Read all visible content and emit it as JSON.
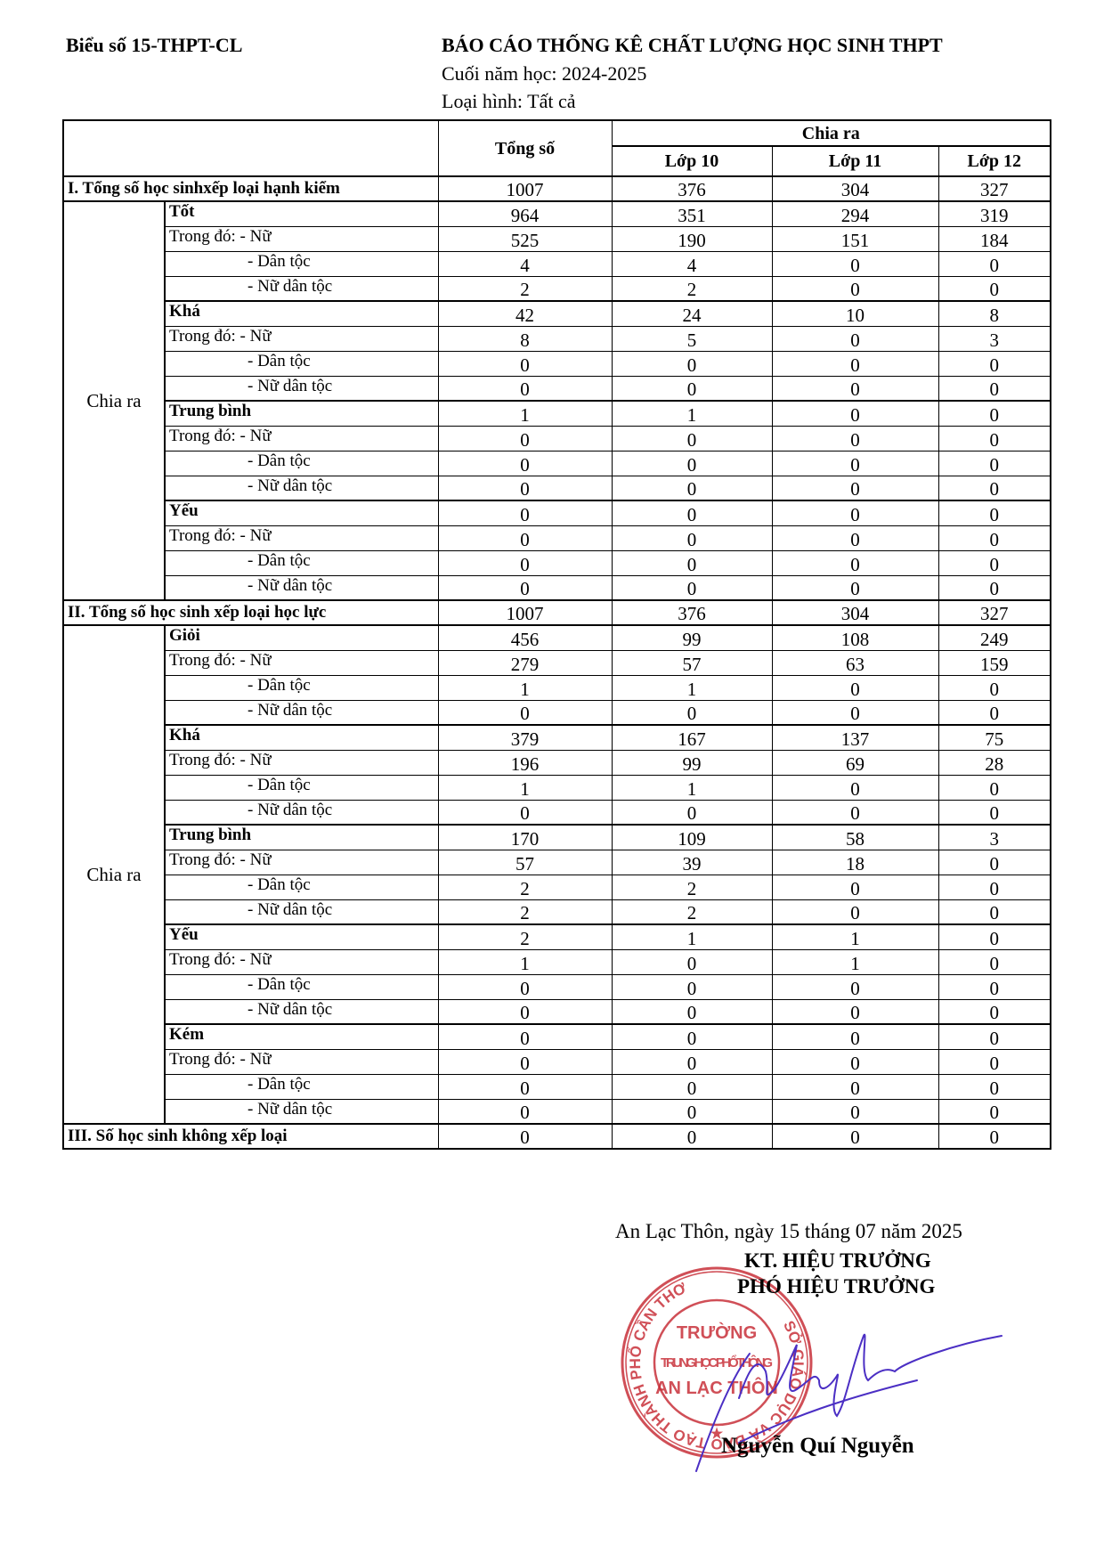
{
  "header": {
    "form_code": "Biểu số 15-THPT-CL",
    "title": "BÁO CÁO THỐNG KÊ CHẤT LƯỢNG HỌC SINH THPT",
    "school_year": "Cuối năm học: 2024-2025",
    "type": "Loại hình: Tất cả"
  },
  "table": {
    "col_total": "Tổng số",
    "col_split": "Chia ra",
    "grades": [
      "Lớp 10",
      "Lớp 11",
      "Lớp 12"
    ],
    "split_label": "Chia ra",
    "sub_labels": [
      "Trong đó: - Nữ",
      "- Dân tộc",
      "- Nữ dân tộc"
    ],
    "sections": [
      {
        "title": "I. Tổng số học sinhxếp loại hạnh kiểm",
        "values": [
          1007,
          376,
          304,
          327
        ],
        "groups": [
          {
            "label": "Tốt",
            "values": [
              964,
              351,
              294,
              319
            ],
            "subs": [
              [
                525,
                190,
                151,
                184
              ],
              [
                4,
                4,
                0,
                0
              ],
              [
                2,
                2,
                0,
                0
              ]
            ]
          },
          {
            "label": "Khá",
            "values": [
              42,
              24,
              10,
              8
            ],
            "subs": [
              [
                8,
                5,
                0,
                3
              ],
              [
                0,
                0,
                0,
                0
              ],
              [
                0,
                0,
                0,
                0
              ]
            ]
          },
          {
            "label": "Trung bình",
            "values": [
              1,
              1,
              0,
              0
            ],
            "subs": [
              [
                0,
                0,
                0,
                0
              ],
              [
                0,
                0,
                0,
                0
              ],
              [
                0,
                0,
                0,
                0
              ]
            ]
          },
          {
            "label": "Yếu",
            "values": [
              0,
              0,
              0,
              0
            ],
            "subs": [
              [
                0,
                0,
                0,
                0
              ],
              [
                0,
                0,
                0,
                0
              ],
              [
                0,
                0,
                0,
                0
              ]
            ]
          }
        ]
      },
      {
        "title": "II. Tổng số học sinh xếp loại học lực",
        "values": [
          1007,
          376,
          304,
          327
        ],
        "groups": [
          {
            "label": "Giỏi",
            "values": [
              456,
              99,
              108,
              249
            ],
            "subs": [
              [
                279,
                57,
                63,
                159
              ],
              [
                1,
                1,
                0,
                0
              ],
              [
                0,
                0,
                0,
                0
              ]
            ]
          },
          {
            "label": "Khá",
            "values": [
              379,
              167,
              137,
              75
            ],
            "subs": [
              [
                196,
                99,
                69,
                28
              ],
              [
                1,
                1,
                0,
                0
              ],
              [
                0,
                0,
                0,
                0
              ]
            ]
          },
          {
            "label": "Trung bình",
            "values": [
              170,
              109,
              58,
              3
            ],
            "subs": [
              [
                57,
                39,
                18,
                0
              ],
              [
                2,
                2,
                0,
                0
              ],
              [
                2,
                2,
                0,
                0
              ]
            ]
          },
          {
            "label": "Yếu",
            "values": [
              2,
              1,
              1,
              0
            ],
            "subs": [
              [
                1,
                0,
                1,
                0
              ],
              [
                0,
                0,
                0,
                0
              ],
              [
                0,
                0,
                0,
                0
              ]
            ]
          },
          {
            "label": "Kém",
            "values": [
              0,
              0,
              0,
              0
            ],
            "subs": [
              [
                0,
                0,
                0,
                0
              ],
              [
                0,
                0,
                0,
                0
              ],
              [
                0,
                0,
                0,
                0
              ]
            ]
          }
        ]
      },
      {
        "title": "III. Số học sinh không xếp loại",
        "values": [
          0,
          0,
          0,
          0
        ],
        "groups": []
      }
    ]
  },
  "footer": {
    "place_date": "An Lạc Thôn, ngày  15  tháng  07  năm 2025",
    "sign_title_1": "KT. HIỆU TRƯỞNG",
    "sign_title_2": "PHÓ HIỆU TRƯỞNG",
    "signer_name": "Nguyễn Quí Nguyễn"
  },
  "stamp": {
    "ring_text": "SỞ GIÁO DỤC VÀ ĐÀO TẠO THÀNH PHỐ CẦN THƠ",
    "line1": "TRƯỜNG",
    "line2": "TRUNG HỌC PHỔ THÔNG",
    "line3": "AN LẠC THÔN",
    "color": "#c8313a"
  },
  "signature_color": "#4b2fc4"
}
